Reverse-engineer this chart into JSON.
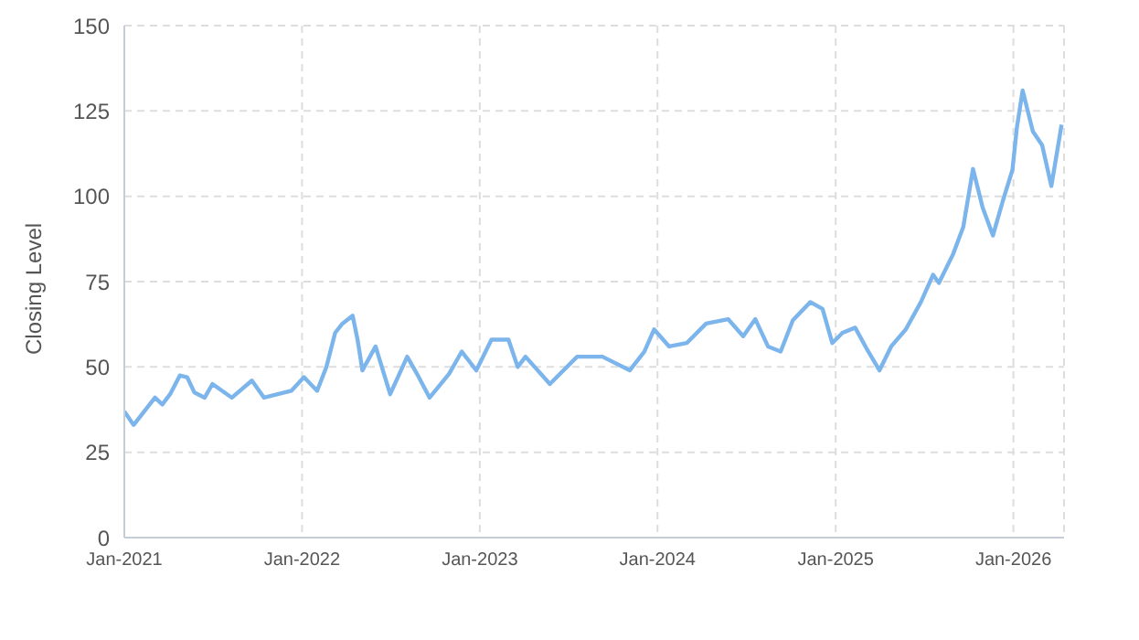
{
  "chart_data": {
    "type": "line",
    "ylabel": "Closing Level",
    "grid": true,
    "legend": false,
    "marker": "none",
    "line_style": "solid",
    "x": [
      "2021-01-01",
      "2021-01-20",
      "2021-03-05",
      "2021-03-20",
      "2021-04-05",
      "2021-04-25",
      "2021-05-10",
      "2021-05-25",
      "2021-06-15",
      "2021-07-01",
      "2021-08-10",
      "2021-09-20",
      "2021-10-15",
      "2021-12-10",
      "2022-01-05",
      "2022-02-01",
      "2022-02-20",
      "2022-03-10",
      "2022-03-25",
      "2022-04-15",
      "2022-04-25",
      "2022-05-05",
      "2022-06-01",
      "2022-07-01",
      "2022-08-05",
      "2022-08-25",
      "2022-09-20",
      "2022-10-30",
      "2022-11-25",
      "2022-12-25",
      "2023-01-25",
      "2023-03-01",
      "2023-03-20",
      "2023-04-05",
      "2023-05-25",
      "2023-07-20",
      "2023-09-10",
      "2023-11-05",
      "2023-12-05",
      "2023-12-25",
      "2024-01-25",
      "2024-03-01",
      "2024-04-10",
      "2024-05-25",
      "2024-06-25",
      "2024-07-20",
      "2024-08-15",
      "2024-09-10",
      "2024-10-05",
      "2024-11-10",
      "2024-12-05",
      "2024-12-25",
      "2025-01-15",
      "2025-02-10",
      "2025-03-05",
      "2025-04-01",
      "2025-04-25",
      "2025-05-25",
      "2025-06-25",
      "2025-07-20",
      "2025-08-01",
      "2025-08-30",
      "2025-09-20",
      "2025-10-10",
      "2025-10-30",
      "2025-11-20",
      "2025-12-10",
      "2025-12-30",
      "2026-01-08",
      "2026-01-20",
      "2026-02-10",
      "2026-03-01",
      "2026-03-20",
      "2026-04-10"
    ],
    "series": [
      {
        "color": "#7cb5ec",
        "values": [
          37,
          33,
          41,
          39,
          42,
          47.5,
          47,
          42.5,
          41,
          45,
          41,
          46,
          41,
          43,
          47,
          43,
          50,
          60,
          62.7,
          65,
          58,
          49,
          56,
          42,
          53,
          48,
          41,
          48,
          54.5,
          49,
          58,
          58,
          50,
          53,
          45,
          53,
          53,
          49,
          54.5,
          61,
          56,
          57,
          62.7,
          64,
          59,
          64,
          56,
          54.5,
          63.7,
          69,
          67,
          57,
          60,
          61.5,
          55.5,
          49,
          56,
          61,
          69,
          77,
          74.6,
          83,
          91,
          108,
          96.6,
          88.5,
          98.5,
          107.7,
          120,
          131,
          119,
          115,
          103,
          121
        ]
      }
    ],
    "xlim": [
      "2021-01-01",
      "2026-04-15"
    ],
    "xticks": [
      {
        "value": "2021-01",
        "label": "Jan-2021"
      },
      {
        "value": "2022-01",
        "label": "Jan-2022"
      },
      {
        "value": "2023-01",
        "label": "Jan-2023"
      },
      {
        "value": "2024-01",
        "label": "Jan-2024"
      },
      {
        "value": "2025-01",
        "label": "Jan-2025"
      },
      {
        "value": "2026-01",
        "label": "Jan-2026"
      }
    ],
    "ylim": [
      0,
      150
    ],
    "yticks": [
      0,
      25,
      50,
      75,
      100,
      125,
      150
    ]
  }
}
